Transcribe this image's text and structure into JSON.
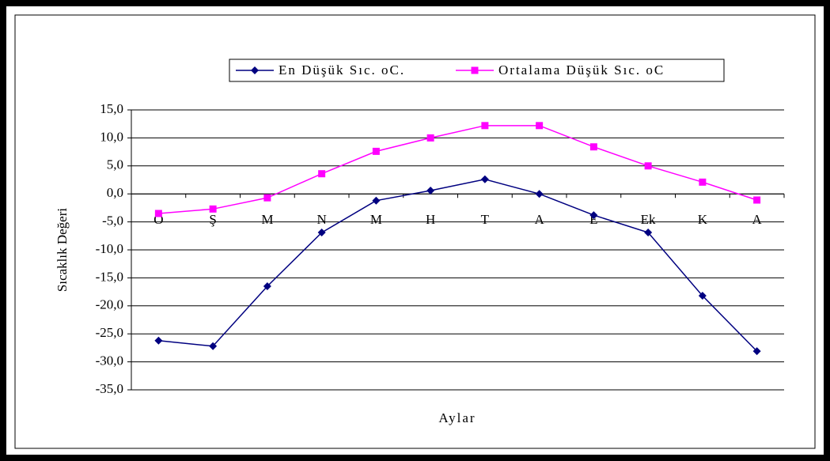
{
  "chart_data": {
    "type": "line",
    "y_label": "Sıcaklık Değeri",
    "x_label": "Aylar",
    "categories": [
      "O",
      "Ş",
      "M",
      "N",
      "M",
      "H",
      "T",
      "A",
      "E",
      "Ek",
      "K",
      "A"
    ],
    "series": [
      {
        "name": "En Düşük Sıc. oC.",
        "color": "#000080",
        "marker": "diamond",
        "values": [
          -26.2,
          -27.2,
          -16.5,
          -6.9,
          -1.2,
          0.6,
          2.6,
          0,
          -3.8,
          -6.9,
          -18.2,
          -28.1
        ]
      },
      {
        "name": "Ortalama Düşük Sıc. oC",
        "color": "#ff00ff",
        "marker": "square",
        "values": [
          -3.5,
          -2.7,
          -0.7,
          3.6,
          7.6,
          10.0,
          12.2,
          12.2,
          8.4,
          5.0,
          2.1,
          -1.1
        ]
      }
    ],
    "ylim": [
      -35,
      15
    ],
    "yticks": [
      {
        "value": -35,
        "label": "-35,0"
      },
      {
        "value": -30,
        "label": "-30,0"
      },
      {
        "value": -25,
        "label": "-25,0"
      },
      {
        "value": -20,
        "label": "-20,0"
      },
      {
        "value": -15,
        "label": "-15,0"
      },
      {
        "value": -10,
        "label": "-10,0"
      },
      {
        "value": -5,
        "label": "-5,0"
      },
      {
        "value": 0,
        "label": "0,0"
      },
      {
        "value": 5,
        "label": "5,0"
      },
      {
        "value": 10,
        "label": "10,0"
      },
      {
        "value": 15,
        "label": "15,0"
      }
    ],
    "grid": true,
    "legend": "top"
  }
}
